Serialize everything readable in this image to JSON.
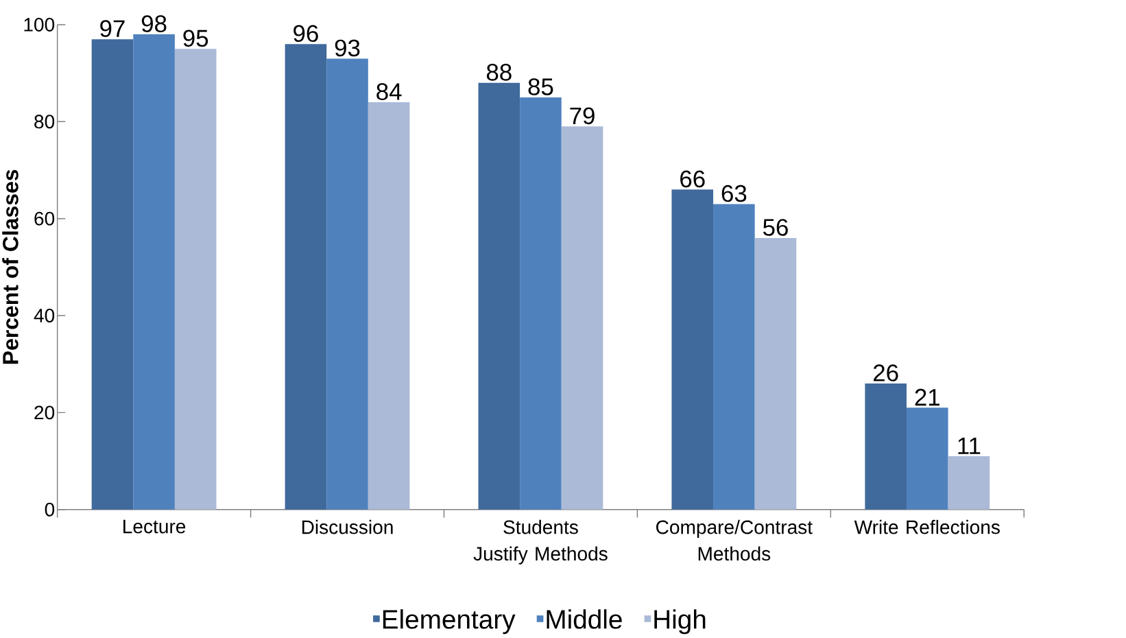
{
  "chart_data": {
    "type": "bar",
    "ylabel": "Percent of Classes",
    "categories": [
      "Lecture",
      "Discussion",
      "Students Justify Methods",
      "Compare/Contrast Methods",
      "Write Reflections"
    ],
    "series": [
      {
        "name": "Elementary",
        "color": "#406a9c",
        "values": [
          97,
          96,
          88,
          66,
          26
        ]
      },
      {
        "name": "Middle",
        "color": "#4f81bd",
        "values": [
          98,
          93,
          85,
          63,
          21
        ]
      },
      {
        "name": "High",
        "color": "#aabad7",
        "values": [
          95,
          84,
          79,
          56,
          11
        ]
      }
    ],
    "ylim": [
      0,
      100
    ],
    "yticks": [
      0,
      20,
      40,
      60,
      80,
      100
    ],
    "data_labels": true,
    "legend": "bottom",
    "grid": false
  }
}
